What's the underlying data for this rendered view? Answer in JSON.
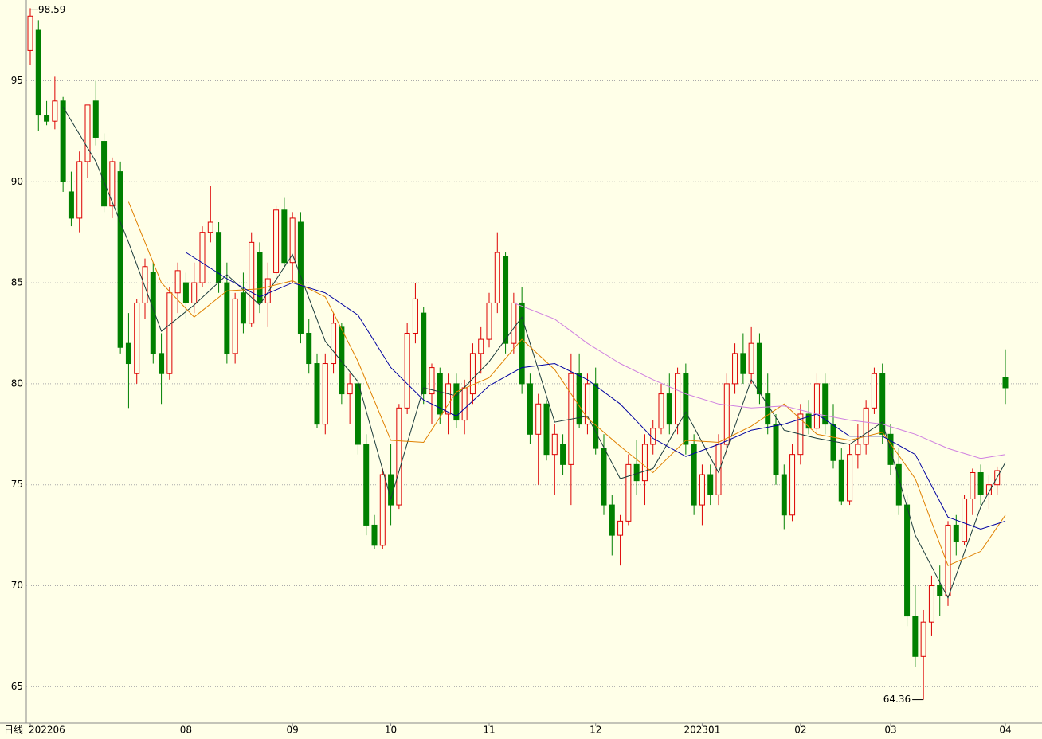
{
  "chart_data": {
    "type": "candlestick",
    "period_label": "日线",
    "categories": [
      "202206",
      null,
      null,
      null,
      null,
      null,
      null,
      null,
      null,
      null,
      null,
      null,
      null,
      null,
      null,
      null,
      null,
      null,
      null,
      "08",
      null,
      null,
      null,
      null,
      null,
      null,
      null,
      null,
      null,
      null,
      null,
      null,
      "09",
      null,
      null,
      null,
      null,
      null,
      null,
      null,
      null,
      null,
      null,
      null,
      "10",
      null,
      null,
      null,
      null,
      null,
      null,
      null,
      null,
      null,
      null,
      null,
      "11",
      null,
      null,
      null,
      null,
      null,
      null,
      null,
      null,
      null,
      null,
      null,
      null,
      "12",
      null,
      null,
      null,
      null,
      null,
      null,
      null,
      null,
      null,
      null,
      null,
      null,
      "202301",
      null,
      null,
      null,
      null,
      null,
      null,
      null,
      null,
      null,
      null,
      null,
      "02",
      null,
      null,
      null,
      null,
      null,
      null,
      null,
      null,
      null,
      null,
      "03",
      null,
      null,
      null,
      null,
      null,
      null,
      null,
      null,
      null,
      null,
      null,
      null,
      null,
      "04"
    ],
    "ohlc": [
      [
        96.5,
        98.59,
        95.8,
        98.2
      ],
      [
        97.5,
        98.0,
        92.5,
        93.3
      ],
      [
        93.3,
        94.0,
        92.8,
        93.0
      ],
      [
        93.0,
        95.2,
        92.6,
        94.0
      ],
      [
        94.0,
        94.2,
        89.5,
        90.0
      ],
      [
        89.5,
        90.5,
        87.8,
        88.2
      ],
      [
        88.2,
        91.5,
        87.5,
        91.0
      ],
      [
        91.0,
        93.8,
        90.2,
        93.8
      ],
      [
        94.0,
        95.0,
        91.8,
        92.2
      ],
      [
        92.0,
        92.4,
        88.5,
        88.8
      ],
      [
        88.8,
        91.2,
        88.2,
        91.0
      ],
      [
        90.5,
        91.0,
        81.5,
        81.8
      ],
      [
        82.0,
        83.5,
        78.8,
        81.0
      ],
      [
        80.5,
        84.2,
        80.0,
        84.0
      ],
      [
        84.0,
        86.2,
        83.2,
        85.8
      ],
      [
        85.5,
        86.0,
        81.0,
        81.5
      ],
      [
        81.5,
        82.5,
        79.0,
        80.5
      ],
      [
        80.5,
        84.8,
        80.2,
        84.5
      ],
      [
        84.5,
        86.0,
        83.5,
        85.6
      ],
      [
        85.0,
        85.5,
        83.2,
        84.0
      ],
      [
        84.0,
        86.0,
        83.5,
        85.0
      ],
      [
        85.0,
        87.8,
        84.8,
        87.5
      ],
      [
        87.5,
        89.8,
        87.0,
        88.0
      ],
      [
        87.5,
        88.0,
        84.5,
        85.0
      ],
      [
        85.0,
        86.0,
        81.0,
        81.5
      ],
      [
        81.5,
        84.5,
        81.0,
        84.2
      ],
      [
        84.5,
        85.5,
        82.5,
        83.0
      ],
      [
        83.0,
        87.5,
        82.8,
        87.0
      ],
      [
        86.5,
        87.0,
        83.5,
        84.0
      ],
      [
        84.0,
        86.0,
        82.8,
        85.2
      ],
      [
        85.5,
        88.8,
        85.0,
        88.6
      ],
      [
        88.6,
        89.2,
        85.8,
        86.0
      ],
      [
        86.0,
        88.5,
        85.0,
        88.2
      ],
      [
        88.0,
        88.5,
        82.0,
        82.5
      ],
      [
        82.5,
        83.2,
        80.5,
        81.0
      ],
      [
        81.0,
        81.5,
        77.8,
        78.0
      ],
      [
        78.0,
        81.5,
        77.5,
        81.0
      ],
      [
        81.0,
        83.5,
        80.5,
        83.0
      ],
      [
        82.8,
        83.0,
        79.0,
        79.5
      ],
      [
        79.5,
        80.5,
        78.0,
        80.0
      ],
      [
        80.0,
        80.3,
        76.5,
        77.0
      ],
      [
        77.0,
        77.5,
        72.5,
        73.0
      ],
      [
        73.0,
        73.5,
        71.8,
        72.0
      ],
      [
        72.0,
        75.8,
        71.8,
        75.5
      ],
      [
        75.5,
        77.0,
        73.0,
        74.0
      ],
      [
        74.0,
        79.0,
        73.8,
        78.8
      ],
      [
        78.8,
        83.0,
        78.5,
        82.5
      ],
      [
        82.5,
        85.0,
        82.0,
        84.2
      ],
      [
        83.5,
        83.8,
        79.0,
        79.5
      ],
      [
        79.5,
        81.0,
        78.0,
        80.8
      ],
      [
        80.5,
        80.8,
        78.0,
        78.5
      ],
      [
        78.5,
        80.5,
        77.5,
        80.0
      ],
      [
        80.0,
        80.5,
        77.8,
        78.2
      ],
      [
        78.2,
        80.2,
        77.5,
        79.8
      ],
      [
        79.5,
        82.0,
        79.0,
        81.5
      ],
      [
        81.5,
        82.8,
        80.5,
        82.2
      ],
      [
        82.2,
        84.5,
        81.8,
        84.0
      ],
      [
        84.0,
        87.5,
        83.5,
        86.5
      ],
      [
        86.3,
        86.5,
        81.5,
        82.0
      ],
      [
        82.0,
        84.5,
        81.5,
        84.0
      ],
      [
        84.0,
        84.8,
        79.5,
        80.0
      ],
      [
        80.0,
        80.5,
        77.0,
        77.5
      ],
      [
        77.5,
        79.5,
        75.0,
        79.0
      ],
      [
        79.0,
        79.2,
        76.2,
        76.5
      ],
      [
        76.5,
        78.0,
        74.5,
        77.5
      ],
      [
        77.0,
        77.5,
        75.5,
        76.0
      ],
      [
        76.0,
        81.5,
        74.0,
        80.5
      ],
      [
        80.5,
        81.5,
        77.8,
        78.0
      ],
      [
        78.0,
        80.5,
        77.5,
        80.0
      ],
      [
        80.0,
        80.8,
        76.5,
        76.8
      ],
      [
        76.8,
        77.5,
        73.5,
        74.0
      ],
      [
        74.0,
        74.5,
        71.5,
        72.5
      ],
      [
        72.5,
        73.5,
        71.0,
        73.2
      ],
      [
        73.2,
        76.5,
        73.0,
        76.0
      ],
      [
        76.0,
        77.2,
        74.5,
        75.2
      ],
      [
        75.2,
        77.5,
        74.0,
        77.0
      ],
      [
        77.0,
        78.2,
        76.5,
        77.8
      ],
      [
        77.8,
        80.0,
        77.5,
        79.5
      ],
      [
        79.5,
        80.5,
        77.5,
        78.0
      ],
      [
        78.0,
        80.8,
        77.5,
        80.5
      ],
      [
        80.5,
        81.0,
        76.5,
        77.0
      ],
      [
        77.0,
        77.5,
        73.5,
        74.0
      ],
      [
        74.0,
        76.0,
        73.0,
        75.5
      ],
      [
        75.5,
        76.0,
        74.0,
        74.5
      ],
      [
        74.5,
        77.5,
        74.0,
        77.0
      ],
      [
        77.0,
        80.5,
        76.5,
        80.0
      ],
      [
        80.0,
        82.0,
        79.5,
        81.5
      ],
      [
        81.5,
        82.5,
        80.0,
        80.5
      ],
      [
        80.5,
        82.8,
        80.0,
        82.0
      ],
      [
        82.0,
        82.5,
        79.0,
        79.5
      ],
      [
        79.5,
        80.5,
        77.5,
        78.0
      ],
      [
        78.0,
        78.5,
        75.0,
        75.5
      ],
      [
        75.5,
        76.0,
        72.8,
        73.5
      ],
      [
        73.5,
        77.0,
        73.2,
        76.5
      ],
      [
        76.5,
        79.0,
        76.0,
        78.5
      ],
      [
        78.5,
        79.2,
        77.5,
        77.8
      ],
      [
        77.8,
        80.5,
        77.5,
        80.0
      ],
      [
        80.0,
        80.5,
        77.5,
        78.0
      ],
      [
        78.0,
        79.0,
        75.8,
        76.2
      ],
      [
        76.2,
        76.8,
        74.0,
        74.2
      ],
      [
        74.2,
        77.0,
        74.0,
        76.5
      ],
      [
        76.5,
        78.0,
        75.8,
        77.0
      ],
      [
        77.0,
        79.2,
        76.5,
        78.8
      ],
      [
        78.8,
        80.8,
        78.5,
        80.5
      ],
      [
        80.5,
        81.0,
        77.0,
        77.5
      ],
      [
        77.5,
        78.0,
        75.5,
        76.0
      ],
      [
        76.0,
        76.8,
        73.5,
        74.0
      ],
      [
        74.0,
        74.5,
        68.0,
        68.5
      ],
      [
        68.5,
        70.0,
        66.0,
        66.5
      ],
      [
        66.5,
        68.8,
        64.36,
        68.2
      ],
      [
        68.2,
        70.5,
        67.5,
        70.0
      ],
      [
        70.0,
        71.0,
        68.5,
        69.5
      ],
      [
        69.5,
        73.2,
        69.0,
        73.0
      ],
      [
        73.0,
        73.5,
        71.5,
        72.2
      ],
      [
        72.2,
        74.5,
        72.0,
        74.3
      ],
      [
        74.3,
        75.8,
        73.5,
        75.6
      ],
      [
        75.6,
        76.0,
        74.0,
        74.5
      ],
      [
        74.5,
        75.5,
        73.8,
        75.0
      ],
      [
        75.0,
        75.9,
        74.5,
        75.7
      ],
      [
        80.3,
        81.7,
        79.0,
        79.8
      ]
    ],
    "up_color": "#dd0000",
    "down_color": "#008000",
    "series": [
      {
        "color": "#1a3a3a",
        "x": [
          4,
          8,
          12,
          16,
          20,
          24,
          28,
          32,
          36,
          40,
          44,
          48,
          52,
          56,
          60,
          64,
          68,
          72,
          76,
          80,
          84,
          88,
          92,
          96,
          100,
          104,
          108,
          112,
          116,
          119
        ],
        "values": [
          93.7,
          91.0,
          87.0,
          82.6,
          83.9,
          85.4,
          83.9,
          86.4,
          82.1,
          80.1,
          74.3,
          79.8,
          79.4,
          81.1,
          83.3,
          78.1,
          78.4,
          75.3,
          75.8,
          78.6,
          75.6,
          80.2,
          77.7,
          77.3,
          77.0,
          78.1,
          72.5,
          69.4,
          73.9,
          76.1
        ]
      },
      {
        "color": "#e08000",
        "x": [
          12,
          16,
          20,
          24,
          28,
          32,
          36,
          40,
          44,
          48,
          52,
          56,
          60,
          64,
          68,
          72,
          76,
          80,
          84,
          88,
          92,
          96,
          100,
          104,
          108,
          112,
          116,
          119
        ],
        "values": [
          89.0,
          85.0,
          83.3,
          84.6,
          84.7,
          85.1,
          84.3,
          81.1,
          77.2,
          77.1,
          79.6,
          80.3,
          82.2,
          80.7,
          78.3,
          76.9,
          75.6,
          77.2,
          77.1,
          77.9,
          79.0,
          77.5,
          77.2,
          77.6,
          75.3,
          71.0,
          71.7,
          73.5
        ]
      },
      {
        "color": "#0000a0",
        "x": [
          19,
          24,
          28,
          32,
          36,
          40,
          44,
          48,
          52,
          56,
          60,
          64,
          68,
          72,
          76,
          80,
          84,
          88,
          92,
          96,
          100,
          104,
          108,
          112,
          116,
          119
        ],
        "values": [
          86.5,
          85.2,
          84.3,
          85.0,
          84.5,
          83.4,
          80.8,
          79.2,
          78.4,
          79.9,
          80.8,
          81.0,
          80.2,
          79.0,
          77.3,
          76.4,
          77.0,
          77.7,
          78.0,
          78.5,
          77.4,
          77.4,
          76.5,
          73.4,
          72.8,
          73.2
        ]
      },
      {
        "color": "#d080e0",
        "x": [
          59,
          64,
          68,
          72,
          76,
          80,
          84,
          88,
          92,
          96,
          100,
          104,
          108,
          112,
          116,
          119
        ],
        "values": [
          84.0,
          83.2,
          82.0,
          81.0,
          80.2,
          79.5,
          79.0,
          78.8,
          78.9,
          78.5,
          78.2,
          78.0,
          77.5,
          76.8,
          76.3,
          76.5
        ]
      }
    ],
    "annotations": [
      {
        "text": "98.59",
        "index": 0,
        "value": 98.59
      },
      {
        "text": "64.36",
        "index": 109,
        "value": 64.36
      }
    ],
    "ylim": [
      63.2,
      99
    ],
    "yticks": [
      65,
      70,
      75,
      80,
      85,
      90,
      95
    ],
    "grid": true
  }
}
